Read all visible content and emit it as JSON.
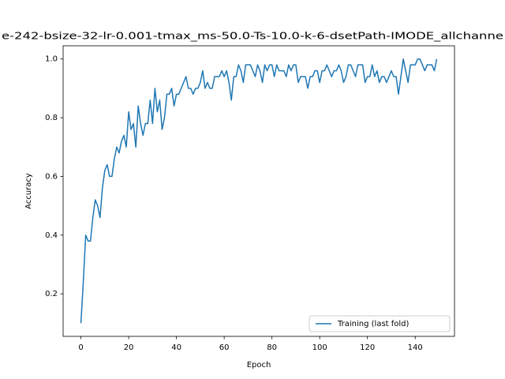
{
  "chart_data": {
    "type": "line",
    "title": "e-242-bsize-32-lr-0.001-tmax_ms-50.0-Ts-10.0-k-6-dsetPath-IMODE_allchanne",
    "xlabel": "Epoch",
    "ylabel": "Accuracy",
    "x": [
      0,
      1,
      2,
      3,
      4,
      5,
      6,
      7,
      8,
      9,
      10,
      11,
      12,
      13,
      14,
      15,
      16,
      17,
      18,
      19,
      20,
      21,
      22,
      23,
      24,
      25,
      26,
      27,
      28,
      29,
      30,
      31,
      32,
      33,
      34,
      35,
      36,
      37,
      38,
      39,
      40,
      41,
      42,
      43,
      44,
      45,
      46,
      47,
      48,
      49,
      50,
      51,
      52,
      53,
      54,
      55,
      56,
      57,
      58,
      59,
      60,
      61,
      62,
      63,
      64,
      65,
      66,
      67,
      68,
      69,
      70,
      71,
      72,
      73,
      74,
      75,
      76,
      77,
      78,
      79,
      80,
      81,
      82,
      83,
      84,
      85,
      86,
      87,
      88,
      89,
      90,
      91,
      92,
      93,
      94,
      95,
      96,
      97,
      98,
      99,
      100,
      101,
      102,
      103,
      104,
      105,
      106,
      107,
      108,
      109,
      110,
      111,
      112,
      113,
      114,
      115,
      116,
      117,
      118,
      119,
      120,
      121,
      122,
      123,
      124,
      125,
      126,
      127,
      128,
      129,
      130,
      131,
      132,
      133,
      134,
      135,
      136,
      137,
      138,
      139,
      140,
      141,
      142,
      143,
      144,
      145,
      146,
      147,
      148,
      149
    ],
    "series": [
      {
        "name": "Training (last fold)",
        "color": "#1f77b4",
        "values": [
          0.1,
          0.24,
          0.4,
          0.38,
          0.38,
          0.46,
          0.52,
          0.5,
          0.46,
          0.56,
          0.62,
          0.64,
          0.6,
          0.6,
          0.66,
          0.7,
          0.68,
          0.72,
          0.74,
          0.7,
          0.82,
          0.76,
          0.78,
          0.7,
          0.84,
          0.78,
          0.74,
          0.78,
          0.78,
          0.86,
          0.78,
          0.9,
          0.82,
          0.86,
          0.76,
          0.8,
          0.88,
          0.88,
          0.9,
          0.84,
          0.88,
          0.88,
          0.9,
          0.92,
          0.94,
          0.9,
          0.9,
          0.88,
          0.9,
          0.9,
          0.92,
          0.96,
          0.9,
          0.92,
          0.9,
          0.9,
          0.94,
          0.94,
          0.94,
          0.96,
          0.94,
          0.96,
          0.92,
          0.86,
          0.94,
          0.94,
          0.98,
          0.96,
          0.92,
          0.98,
          0.98,
          0.98,
          0.96,
          0.94,
          0.98,
          0.96,
          0.92,
          0.98,
          0.96,
          0.98,
          0.98,
          0.94,
          0.98,
          0.96,
          0.96,
          0.96,
          0.94,
          0.98,
          0.96,
          0.98,
          0.98,
          0.92,
          0.94,
          0.94,
          0.94,
          0.9,
          0.94,
          0.94,
          0.96,
          0.96,
          0.92,
          0.96,
          0.96,
          0.98,
          0.96,
          0.94,
          0.96,
          0.96,
          0.98,
          0.96,
          0.92,
          0.94,
          0.98,
          0.98,
          0.96,
          0.94,
          0.98,
          0.98,
          0.98,
          0.92,
          0.94,
          0.94,
          0.98,
          0.94,
          0.96,
          0.92,
          0.94,
          0.94,
          0.92,
          0.94,
          0.96,
          0.94,
          0.94,
          0.88,
          0.94,
          1.0,
          0.96,
          0.92,
          0.98,
          0.98,
          0.98,
          1.0,
          1.0,
          0.98,
          0.96,
          0.98,
          0.98,
          0.98,
          0.96,
          1.0
        ]
      }
    ],
    "xlim": [
      -7.45,
      156.45
    ],
    "ylim": [
      0.055,
      1.045
    ],
    "xticks": [
      0,
      20,
      40,
      60,
      80,
      100,
      120,
      140
    ],
    "yticks": [
      0.2,
      0.4,
      0.6,
      0.8,
      {
        "value": 1,
        "label": "1.0"
      }
    ],
    "legend": "lower right",
    "grid": false
  }
}
